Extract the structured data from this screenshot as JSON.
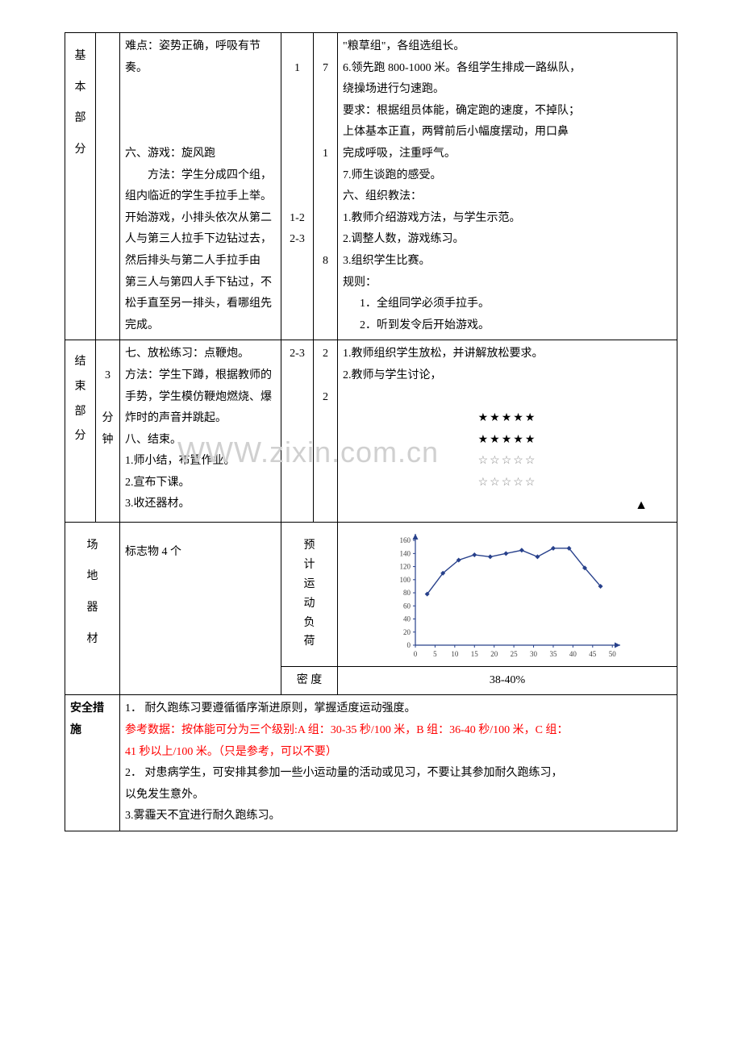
{
  "watermark": "WWW.zixin.com.cn",
  "section1": {
    "labels": [
      "基",
      "本",
      "部",
      "分"
    ],
    "content": {
      "difficulty": "难点：姿势正确，呼吸有节奏。",
      "game_title": "六、游戏：旋风跑",
      "game_method_label": "方法：学生分成四个组，",
      "game_method_lines": [
        "组内临近的学生手拉手上举。",
        "开始游戏，小排头依次从第二",
        "人与第三人拉手下边钻过去，",
        "然后排头与第二人手拉手由",
        "第三人与第四人手下钻过，不",
        "松手直至另一排头，看哪组先",
        "完成。"
      ]
    },
    "nums": {
      "block1_n1": "1",
      "block1_n2": "7",
      "block3_n2": "1",
      "block4_n1_a": "1-2",
      "block4_n1_b": "2-3",
      "block5_n2": "8"
    },
    "method": {
      "l0": "\"粮草组\"，各组选组长。",
      "l1": "6.领先跑 800-1000 米。各组学生排成一路纵队，",
      "l2": "绕操场进行匀速跑。",
      "l3": "要求：根据组员体能，确定跑的速度，不掉队；",
      "l4": "上体基本正直，两臂前后小幅度摆动，用口鼻",
      "l5": "完成呼吸，注重呼气。",
      "l6": "7.师生谈跑的感受。",
      "l7": "六、组织教法：",
      "l8": "1.教师介绍游戏方法，与学生示范。",
      "l9": "2.调整人数，游戏练习。",
      "l10": "3.组织学生比赛。",
      "l11": "规则：",
      "l12": "1．全组同学必须手拉手。",
      "l13": "2．听到发令后开始游戏。"
    }
  },
  "section2": {
    "labels": [
      "结",
      "束",
      "部",
      "分"
    ],
    "time": "3",
    "time_unit1": "分",
    "time_unit2": "钟",
    "content": {
      "l0": "七、放松练习：点鞭炮。",
      "l1": "方法：学生下蹲，根据教师的",
      "l2": "手势，学生模仿鞭炮燃烧、爆",
      "l3": "炸时的声音并跳起。",
      "l4": "八、结束。",
      "l5": "1.师小结，布置作业。",
      "l6": "2.宣布下课。",
      "l7": "3.收还器材。"
    },
    "nums": {
      "n1": "2-3",
      "n2a": "2",
      "n2b": "2"
    },
    "method": {
      "l0": "1.教师组织学生放松，并讲解放松要求。",
      "l1": "2.教师与学生讨论，"
    },
    "stars_filled": "★★★★★",
    "stars_open": "☆☆☆☆☆",
    "triangle": "▲"
  },
  "equipment": {
    "labels": [
      "场",
      "地",
      "器",
      "材"
    ],
    "value": "标志物 4 个",
    "load_label": "预计运动负荷",
    "density_label": "密   度",
    "density_value": "38-40%"
  },
  "chart": {
    "type": "line",
    "x_ticks": [
      0,
      5,
      10,
      15,
      20,
      25,
      30,
      35,
      40,
      45,
      50
    ],
    "y_ticks": [
      0,
      20,
      40,
      60,
      80,
      100,
      120,
      140,
      160
    ],
    "points": [
      [
        3,
        78
      ],
      [
        7,
        110
      ],
      [
        11,
        130
      ],
      [
        15,
        138
      ],
      [
        19,
        135
      ],
      [
        23,
        140
      ],
      [
        27,
        145
      ],
      [
        31,
        135
      ],
      [
        35,
        148
      ],
      [
        39,
        148
      ],
      [
        43,
        118
      ],
      [
        47,
        90
      ]
    ],
    "line_color": "#27408b",
    "marker_color": "#27408b",
    "axis_color": "#27408b",
    "label_color": "#404040",
    "label_fontsize": 9,
    "xlim": [
      0,
      52
    ],
    "ylim": [
      0,
      170
    ],
    "marker_size": 3,
    "line_width": 1.4
  },
  "safety": {
    "label": "安全措施",
    "l0": "1．  耐久跑练习要遵循循序渐进原则，掌握适度运动强度。",
    "l1a": "参考数据：按体能可分为三个级别:A 组：30-35 秒/100 米，B 组：36-40 秒/100 米，C 组：",
    "l1b": "41 秒以上/100 米。（只是参考，可以不要）",
    "l2": "2．  对患病学生，可安排其参加一些小运动量的活动或见习，不要让其参加耐久跑练习，",
    "l2b": "以免发生意外。",
    "l3": "3.雾霾天不宜进行耐久跑练习。"
  }
}
